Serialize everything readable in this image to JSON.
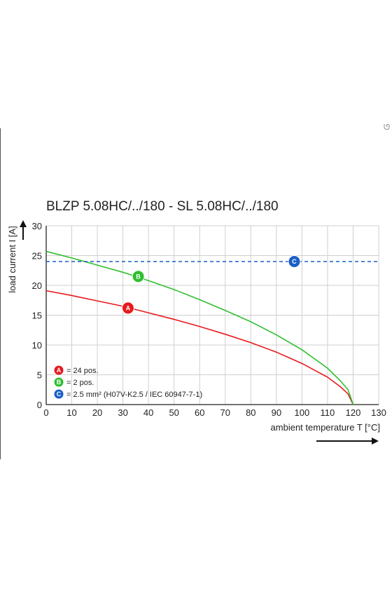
{
  "corner_mark": "ᘎ",
  "chart_data": {
    "type": "line",
    "title": "BLZP 5.08HC/../180 - SL 5.08HC/../180",
    "xlabel": "ambient temperature T [°C]",
    "ylabel": "load current I [A]",
    "xlim": [
      0,
      130
    ],
    "ylim": [
      0,
      30
    ],
    "x_ticks": [
      0,
      10,
      20,
      30,
      40,
      50,
      60,
      70,
      80,
      90,
      100,
      110,
      120,
      130
    ],
    "y_ticks": [
      0,
      5,
      10,
      15,
      20,
      25,
      30
    ],
    "grid": true,
    "legend_position": "bottom-left",
    "series": [
      {
        "badge": "A",
        "legend_label": "= 24 pos.",
        "color": "#e8191c",
        "style": "solid",
        "x": [
          0,
          10,
          20,
          30,
          40,
          50,
          60,
          70,
          80,
          90,
          100,
          110,
          115,
          118,
          120
        ],
        "y": [
          19.1,
          18.3,
          17.4,
          16.5,
          15.4,
          14.3,
          13.1,
          11.8,
          10.4,
          8.8,
          6.9,
          4.6,
          3.0,
          1.8,
          0
        ]
      },
      {
        "badge": "B",
        "legend_label": "= 2 pos.",
        "color": "#2fbf2f",
        "style": "solid",
        "x": [
          0,
          10,
          20,
          30,
          40,
          50,
          60,
          70,
          80,
          90,
          100,
          110,
          115,
          118,
          120
        ],
        "y": [
          25.7,
          24.6,
          23.4,
          22.2,
          20.8,
          19.3,
          17.6,
          15.8,
          13.9,
          11.7,
          9.2,
          6.1,
          4.0,
          2.5,
          0
        ]
      },
      {
        "badge": "C",
        "legend_label": "= 2.5 mm² (H07V-K2.5 / IEC 60947-7-1)",
        "color": "#1a5fc8",
        "style": "dashed",
        "x": [
          0,
          130
        ],
        "y": [
          24,
          24
        ]
      }
    ],
    "markers": [
      {
        "label": "A",
        "x": 32,
        "y": 16.2,
        "color": "#e8191c"
      },
      {
        "label": "B",
        "x": 36,
        "y": 21.5,
        "color": "#2fbf2f"
      },
      {
        "label": "C",
        "x": 97,
        "y": 24,
        "color": "#1a5fc8"
      }
    ]
  }
}
